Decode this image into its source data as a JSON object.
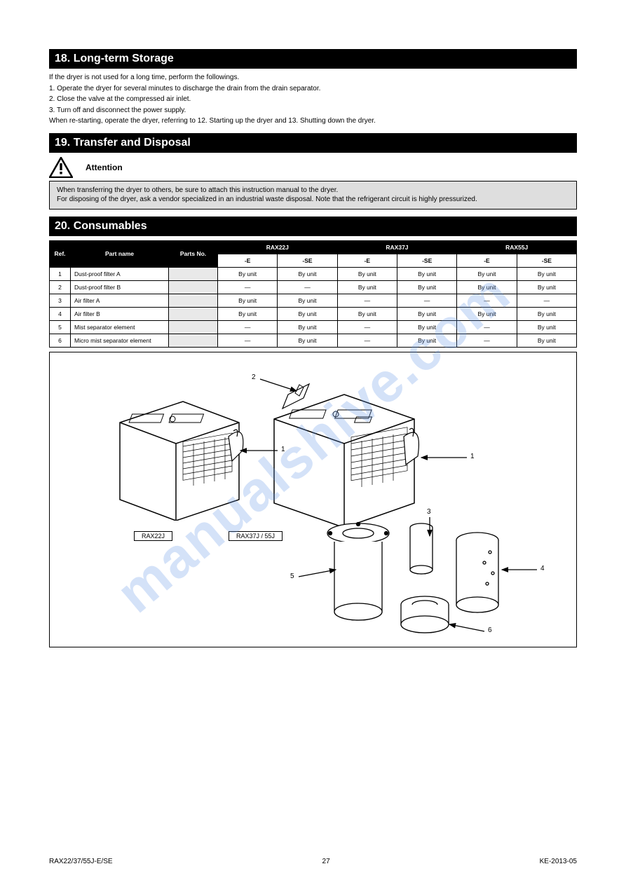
{
  "sections": {
    "s18": {
      "title": "18. Long-term Storage",
      "lines": [
        "If the dryer is not used for a long time, perform the followings.",
        "1. Operate the dryer for several minutes to discharge the drain from the drain separator.",
        "2. Close the valve at the compressed air inlet.",
        "3. Turn off and disconnect the power supply.",
        "",
        "When re-starting, operate the dryer, referring to 12. Starting up the dryer and 13. Shutting down the dryer."
      ]
    },
    "s19": {
      "title": "19. Transfer and Disposal",
      "attention_label": "Attention",
      "gray_text": "When transferring the dryer to others, be sure to attach this instruction manual to the dryer.\nFor disposing of the dryer, ask a vendor specialized in an industrial waste disposal. Note that the refrigerant circuit is highly pressurized."
    },
    "s20": {
      "title": "20. Consumables",
      "table": {
        "group_headers": [
          "RAX22J",
          "RAX37J",
          "RAX55J"
        ],
        "sub_headers": [
          "Ref.",
          "Part name",
          "Parts No.",
          "-E",
          "-SE",
          "-E",
          "-SE",
          "-E",
          "-SE"
        ],
        "rows": [
          [
            "1",
            "Dust-proof filter A",
            "",
            "By unit",
            "By unit",
            "By unit",
            "By unit",
            "By unit",
            "By unit"
          ],
          [
            "2",
            "Dust-proof filter B",
            "",
            "—",
            "—",
            "By unit",
            "By unit",
            "By unit",
            "By unit"
          ],
          [
            "3",
            "Air filter A",
            "",
            "By unit",
            "By unit",
            "—",
            "—",
            "—",
            "—"
          ],
          [
            "4",
            "Air filter B",
            "",
            "By unit",
            "By unit",
            "By unit",
            "By unit",
            "By unit",
            "By unit"
          ],
          [
            "5",
            "Mist separator element",
            "",
            "—",
            "By unit",
            "—",
            "By unit",
            "—",
            "By unit"
          ],
          [
            "6",
            "Micro mist separator element",
            "",
            "—",
            "By unit",
            "—",
            "By unit",
            "—",
            "By unit"
          ]
        ],
        "gray_col_index": 2
      },
      "figure": {
        "box_labels": {
          "left": "RAX22J",
          "right": "RAX37J / 55J"
        },
        "refs": {
          "r1": "1",
          "r2": "2",
          "r3": "3",
          "r4": "4",
          "r5": "5",
          "r6": "6"
        }
      }
    }
  },
  "footer": {
    "left": "RAX22/37/55J-E/SE",
    "right": "KE-2013-05"
  },
  "page_number": "27",
  "watermark": "manualshive.com"
}
